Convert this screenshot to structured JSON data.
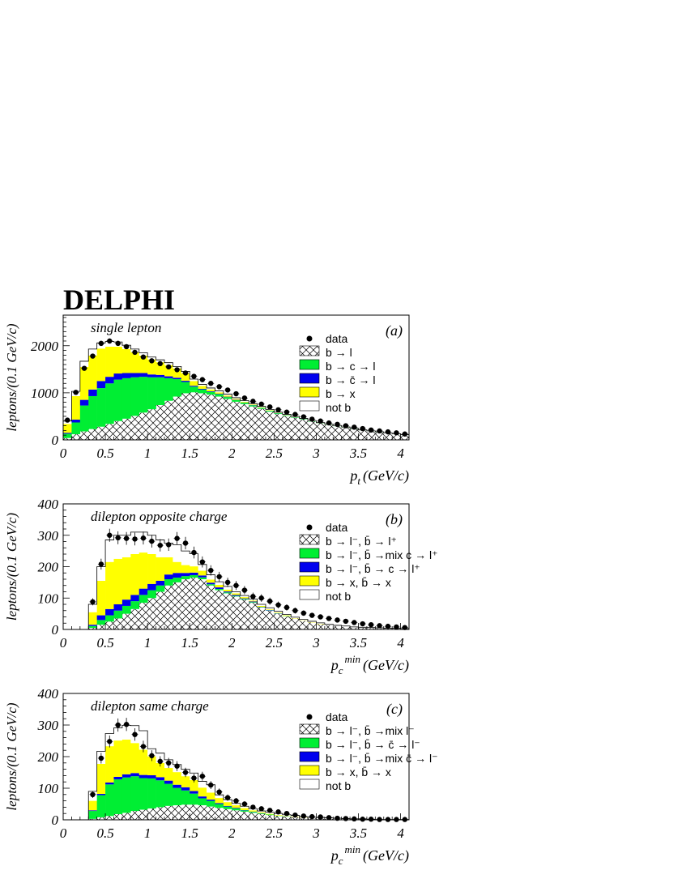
{
  "header": {
    "experiment": "DELPHI"
  },
  "colors": {
    "b_to_l": "#ffffff",
    "b_to_c_to_l": "#00ee33",
    "b_to_cbar_to_l": "#0000ee",
    "b_to_x": "#ffff00",
    "not_b": "#ffffff",
    "data": "#000000"
  },
  "chart_data": [
    {
      "id": "a",
      "type": "bar",
      "stacked": true,
      "histogram": true,
      "bin_width": 0.1,
      "tag": "(a)",
      "title": "single lepton",
      "xlabel": "p_t (GeV/c)",
      "xlabel_main": "p",
      "xlabel_sub": "t",
      "xlabel_sup": "",
      "xlabel_unit": "(GeV/c)",
      "ylabel": "leptons/(0.1 GeV/c)",
      "xlim": [
        0,
        4.1
      ],
      "ylim": [
        0,
        2650
      ],
      "xticks": [
        "0",
        "0.5",
        "1",
        "1.5",
        "2",
        "2.5",
        "3",
        "3.5",
        "4"
      ],
      "yticks": [
        "0",
        "1000",
        "2000"
      ],
      "legend": [
        "data",
        "b → l",
        "b → c → l",
        "b → c̄ → l",
        "b → x",
        "not b"
      ],
      "bin_edges_start": 0,
      "series": [
        {
          "name": "b → l",
          "values": [
            40,
            120,
            180,
            230,
            280,
            340,
            400,
            450,
            510,
            580,
            650,
            740,
            830,
            920,
            990,
            1010,
            990,
            960,
            920,
            870,
            810,
            760,
            710,
            660,
            600,
            550,
            510,
            470,
            430,
            390,
            350,
            320,
            290,
            260,
            230,
            200,
            180,
            160,
            140,
            120,
            100
          ]
        },
        {
          "name": "b → c → l",
          "values": [
            90,
            250,
            550,
            700,
            820,
            860,
            880,
            860,
            820,
            760,
            680,
            590,
            480,
            370,
            240,
            120,
            80,
            60,
            50,
            40,
            35,
            30,
            25,
            20,
            18,
            15,
            12,
            10,
            8,
            6,
            5,
            4,
            4,
            3,
            3,
            2,
            2,
            2,
            1,
            1,
            1
          ]
        },
        {
          "name": "b → c̄ → l",
          "values": [
            20,
            60,
            120,
            140,
            150,
            140,
            130,
            110,
            90,
            80,
            60,
            50,
            40,
            30,
            25,
            20,
            15,
            12,
            10,
            8,
            6,
            5,
            4,
            3,
            2,
            2,
            1,
            1,
            1,
            1,
            0,
            0,
            0,
            0,
            0,
            0,
            0,
            0,
            0,
            0,
            0
          ]
        },
        {
          "name": "b → x",
          "values": [
            190,
            500,
            700,
            720,
            690,
            640,
            570,
            510,
            440,
            370,
            320,
            270,
            240,
            200,
            160,
            100,
            60,
            40,
            30,
            25,
            20,
            15,
            12,
            10,
            8,
            6,
            5,
            4,
            3,
            2,
            2,
            1,
            1,
            1,
            1,
            0,
            0,
            0,
            0,
            0,
            0
          ]
        },
        {
          "name": "not b",
          "values": [
            60,
            100,
            120,
            140,
            120,
            110,
            100,
            80,
            70,
            60,
            50,
            50,
            50,
            40,
            40,
            40,
            35,
            30,
            30,
            30,
            25,
            25,
            20,
            20,
            20,
            15,
            15,
            15,
            15,
            10,
            10,
            10,
            10,
            10,
            10,
            10,
            10,
            10,
            10,
            10,
            10
          ]
        }
      ],
      "data_points": [
        420,
        1010,
        1520,
        1780,
        2050,
        2100,
        2050,
        1980,
        1860,
        1760,
        1680,
        1620,
        1550,
        1490,
        1420,
        1350,
        1280,
        1200,
        1130,
        1060,
        980,
        890,
        820,
        760,
        700,
        640,
        590,
        540,
        490,
        440,
        400,
        360,
        330,
        300,
        270,
        240,
        210,
        190,
        170,
        150,
        125
      ]
    },
    {
      "id": "b",
      "type": "bar",
      "stacked": true,
      "histogram": true,
      "bin_width": 0.1,
      "tag": "(b)",
      "title": "dilepton opposite charge",
      "xlabel": "p_c^min (GeV/c)",
      "xlabel_main": "p",
      "xlabel_sub": "c",
      "xlabel_sup": "min",
      "xlabel_unit": "(GeV/c)",
      "ylabel": "leptons/(0.1 GeV/c)",
      "xlim": [
        0,
        4.1
      ],
      "ylim": [
        0,
        400
      ],
      "xticks": [
        "0",
        "0.5",
        "1",
        "1.5",
        "2",
        "2.5",
        "3",
        "3.5",
        "4"
      ],
      "yticks": [
        "0",
        "100",
        "200",
        "300",
        "400"
      ],
      "legend": [
        "data",
        "b → l⁻, b̄ → l⁺",
        "b → l⁻, b̄ →mix c → l⁺",
        "b → l⁻, b̄ → c → l⁺",
        "b → x, b̄ → x",
        "not b"
      ],
      "bin_edges_start": 0.3,
      "series": [
        {
          "name": "b → l⁻, b̄ → l⁺",
          "values": [
            5,
            15,
            25,
            35,
            50,
            65,
            85,
            100,
            120,
            140,
            150,
            160,
            165,
            160,
            140,
            125,
            115,
            105,
            95,
            85,
            70,
            60,
            50,
            42,
            35,
            28,
            22,
            17,
            13,
            10,
            8,
            6,
            5,
            4,
            3,
            2,
            2,
            1
          ]
        },
        {
          "name": "b → l⁻, b̄ →mix c → l⁺",
          "values": [
            6,
            15,
            20,
            25,
            25,
            25,
            25,
            25,
            20,
            20,
            15,
            10,
            8,
            6,
            4,
            4,
            3,
            2,
            2,
            2,
            1,
            1,
            1,
            1,
            0,
            0,
            0,
            0,
            0,
            0,
            0,
            0,
            0,
            0,
            0,
            0,
            0,
            0
          ]
        },
        {
          "name": "b → l⁻, b̄ → c → l⁺",
          "values": [
            4,
            15,
            20,
            20,
            20,
            20,
            20,
            20,
            15,
            15,
            15,
            10,
            8,
            6,
            5,
            5,
            3,
            3,
            2,
            2,
            1,
            1,
            1,
            0,
            0,
            0,
            0,
            0,
            0,
            0,
            0,
            0,
            0,
            0,
            0,
            0,
            0,
            0
          ]
        },
        {
          "name": "b → x, b̄ → x",
          "values": [
            40,
            110,
            150,
            145,
            135,
            130,
            115,
            95,
            75,
            55,
            35,
            25,
            20,
            15,
            10,
            8,
            6,
            5,
            4,
            3,
            3,
            2,
            2,
            2,
            1,
            1,
            1,
            1,
            0,
            0,
            0,
            0,
            0,
            0,
            0,
            0,
            0,
            0
          ]
        },
        {
          "name": "not b",
          "values": [
            25,
            45,
            70,
            75,
            70,
            70,
            65,
            60,
            55,
            45,
            55,
            45,
            40,
            20,
            15,
            10,
            10,
            5,
            5,
            5,
            5,
            5,
            4,
            3,
            3,
            3,
            3,
            3,
            3,
            3,
            3,
            2,
            2,
            2,
            2,
            2,
            2,
            2
          ]
        }
      ],
      "data_points": [
        88,
        208,
        300,
        292,
        290,
        288,
        291,
        281,
        268,
        270,
        290,
        275,
        245,
        215,
        188,
        168,
        150,
        140,
        125,
        105,
        100,
        90,
        78,
        70,
        60,
        52,
        45,
        40,
        35,
        30,
        26,
        22,
        18,
        15,
        12,
        10,
        8,
        6
      ]
    },
    {
      "id": "c",
      "type": "bar",
      "stacked": true,
      "histogram": true,
      "bin_width": 0.1,
      "tag": "(c)",
      "title": "dilepton same charge",
      "xlabel": "p_c^min (GeV/c)",
      "xlabel_main": "p",
      "xlabel_sub": "c",
      "xlabel_sup": "min",
      "xlabel_unit": "(GeV/c)",
      "ylabel": "leptons/(0.1 GeV/c)",
      "xlim": [
        0,
        4.1
      ],
      "ylim": [
        0,
        400
      ],
      "xticks": [
        "0",
        "0.5",
        "1",
        "1.5",
        "2",
        "2.5",
        "3",
        "3.5",
        "4"
      ],
      "yticks": [
        "0",
        "100",
        "200",
        "300",
        "400"
      ],
      "legend": [
        "data",
        "b → l⁻, b̄ →mix l⁻",
        "b → l⁻, b̄ → c̄ → l⁻",
        "b → l⁻, b̄ →mix c̄ → l⁻",
        "b → x, b̄ → x",
        "not b"
      ],
      "bin_edges_start": 0.3,
      "series": [
        {
          "name": "b → l⁻, b̄ →mix l⁻",
          "values": [
            3,
            8,
            12,
            18,
            22,
            28,
            32,
            36,
            40,
            44,
            46,
            48,
            48,
            46,
            42,
            38,
            34,
            30,
            26,
            22,
            18,
            15,
            12,
            10,
            8,
            6,
            5,
            4,
            3,
            2,
            2,
            1,
            1,
            1,
            0,
            0,
            0,
            0
          ]
        },
        {
          "name": "b → l⁻, b̄ → c̄ → l⁻",
          "values": [
            25,
            70,
            100,
            110,
            112,
            110,
            100,
            95,
            85,
            70,
            55,
            45,
            35,
            22,
            18,
            12,
            8,
            6,
            4,
            3,
            2,
            2,
            1,
            1,
            0,
            0,
            0,
            0,
            0,
            0,
            0,
            0,
            0,
            0,
            0,
            0,
            0,
            0
          ]
        },
        {
          "name": "b → l⁻, b̄ →mix c̄ → l⁻",
          "values": [
            2,
            4,
            6,
            8,
            10,
            10,
            10,
            10,
            10,
            10,
            10,
            10,
            8,
            6,
            4,
            3,
            2,
            2,
            1,
            1,
            1,
            0,
            0,
            0,
            0,
            0,
            0,
            0,
            0,
            0,
            0,
            0,
            0,
            0,
            0,
            0,
            0,
            0
          ]
        },
        {
          "name": "b → x, b̄ → x",
          "values": [
            30,
            95,
            115,
            115,
            110,
            95,
            80,
            60,
            45,
            40,
            40,
            35,
            35,
            28,
            22,
            16,
            12,
            8,
            6,
            4,
            3,
            2,
            2,
            1,
            1,
            1,
            0,
            0,
            0,
            0,
            0,
            0,
            0,
            0,
            0,
            0,
            0,
            0
          ]
        },
        {
          "name": "not b",
          "values": [
            30,
            40,
            40,
            40,
            45,
            55,
            60,
            24,
            31,
            26,
            24,
            22,
            22,
            20,
            25,
            10,
            8,
            6,
            6,
            5,
            4,
            5,
            5,
            4,
            5,
            3,
            3,
            3,
            3,
            3,
            2,
            2,
            2,
            1,
            1,
            1,
            1,
            1
          ]
        }
      ],
      "data_points": [
        80,
        195,
        248,
        300,
        302,
        270,
        232,
        203,
        185,
        180,
        170,
        150,
        132,
        138,
        110,
        88,
        70,
        60,
        50,
        40,
        35,
        30,
        25,
        20,
        15,
        12,
        10,
        9,
        7,
        5,
        4,
        3,
        2,
        2,
        1,
        1,
        1,
        1
      ]
    }
  ]
}
